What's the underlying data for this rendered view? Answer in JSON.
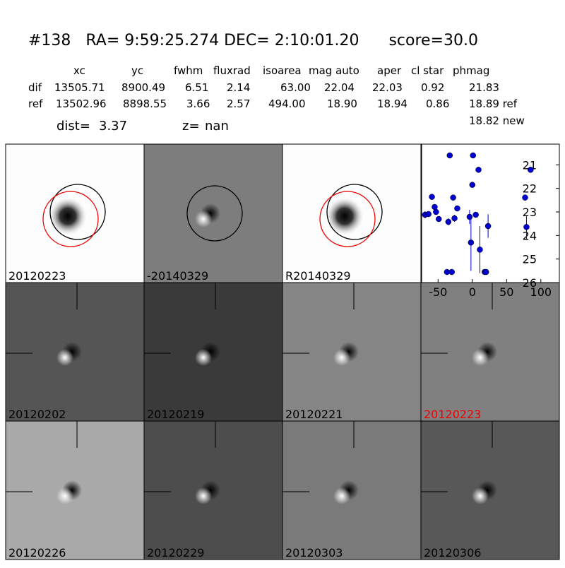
{
  "header": {
    "title": "#138   RA= 9:59:25.274 DEC= 2:10:01.20      score=30.0",
    "columns": [
      "xc",
      "yc",
      "fwhm",
      "fluxrad",
      "isoarea",
      "mag auto",
      "aper",
      "cl star",
      "phmag"
    ],
    "rows": [
      [
        "dif",
        "13505.71",
        "8900.49",
        "6.51",
        "2.14",
        "63.00",
        "22.04",
        "22.03",
        "0.92",
        "21.83"
      ],
      [
        "ref",
        "13502.96",
        "8898.55",
        "3.66",
        "2.57",
        "494.00",
        "18.90",
        "18.94",
        "0.86",
        "18.89 ref"
      ]
    ],
    "extra": "18.82 new",
    "dist_label": "dist=",
    "dist": "3.37",
    "z_label": "z=",
    "z": "nan"
  },
  "panels": [
    "20120223",
    "-20140329",
    "R20140329",
    "20120202",
    "20120219",
    "20120221",
    "20120223",
    "20120226",
    "20120229",
    "20120303",
    "20120306"
  ],
  "chart_data": {
    "type": "scatter",
    "color": "#0000cc",
    "x": [
      -69,
      -64,
      -59,
      -55,
      -53,
      -49,
      -33,
      -35,
      -28,
      -26,
      -22,
      -37,
      -30,
      1,
      0,
      9,
      -4,
      5,
      -2,
      11,
      23,
      18,
      20,
      77,
      79,
      85
    ],
    "values": [
      23.12,
      23.09,
      22.36,
      22.79,
      23.0,
      23.3,
      20.6,
      23.42,
      22.39,
      23.27,
      22.85,
      25.55,
      25.55,
      20.6,
      21.85,
      21.21,
      23.21,
      23.12,
      24.3,
      24.6,
      23.6,
      25.55,
      25.55,
      22.39,
      23.64,
      21.21
    ],
    "errors": [
      0.15,
      0.12,
      0.1,
      0.1,
      0.1,
      0.1,
      0.05,
      0.15,
      0.08,
      0.15,
      0.12,
      0.05,
      0.05,
      0.05,
      0.05,
      0.05,
      0.3,
      0.1,
      1.2,
      1.0,
      0.5,
      0.05,
      0.05,
      0.1,
      0.5,
      0.05
    ],
    "xlim": [
      -74,
      127
    ],
    "ylim": [
      26,
      20.12
    ],
    "xticks": [
      -50,
      0,
      50,
      100
    ],
    "yticks": [
      21,
      22,
      23,
      24,
      25,
      26
    ]
  }
}
